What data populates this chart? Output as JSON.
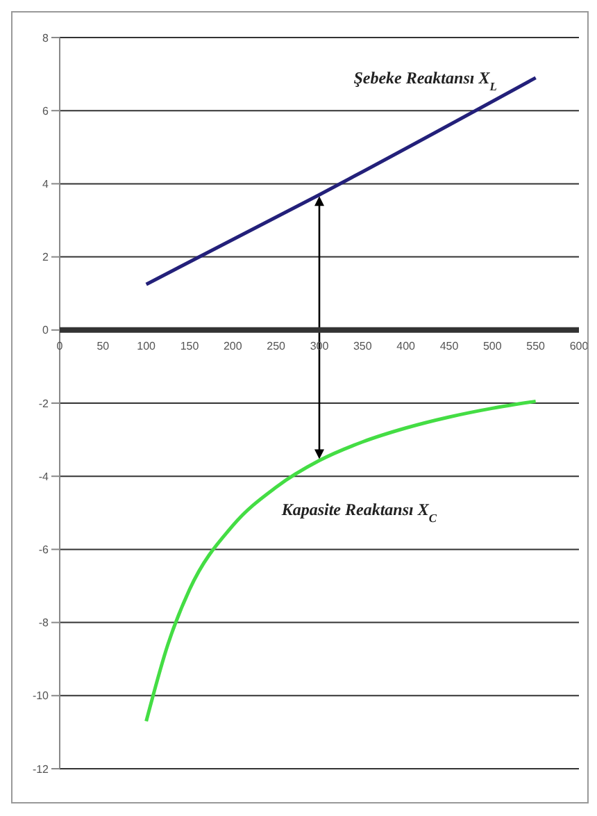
{
  "chart_data": {
    "type": "line",
    "series": [
      {
        "name": "Şebeke Reaktansı X$_{L}$",
        "color": "#23207a",
        "x": [
          100,
          300,
          550
        ],
        "values": [
          1.25,
          3.7,
          6.9
        ]
      },
      {
        "name": "Kapasite Reaktansı X$_{C}$",
        "color": "#44dd44",
        "x": [
          100,
          125,
          150,
          200,
          250,
          300,
          350,
          400,
          450,
          500,
          550
        ],
        "values": [
          -10.7,
          -8.6,
          -7.1,
          -5.35,
          -4.3,
          -3.57,
          -3.06,
          -2.68,
          -2.38,
          -2.14,
          -1.95
        ]
      }
    ],
    "xlim": [
      0,
      600
    ],
    "xticks": [
      0,
      50,
      100,
      150,
      200,
      250,
      300,
      350,
      400,
      450,
      500,
      550,
      600
    ],
    "ylim": [
      -12,
      8
    ],
    "yticks": [
      -12,
      -10,
      -8,
      -6,
      -4,
      -2,
      0,
      2,
      4,
      6,
      8
    ],
    "grid": "y",
    "marker": "none",
    "line_style": "solid"
  }
}
